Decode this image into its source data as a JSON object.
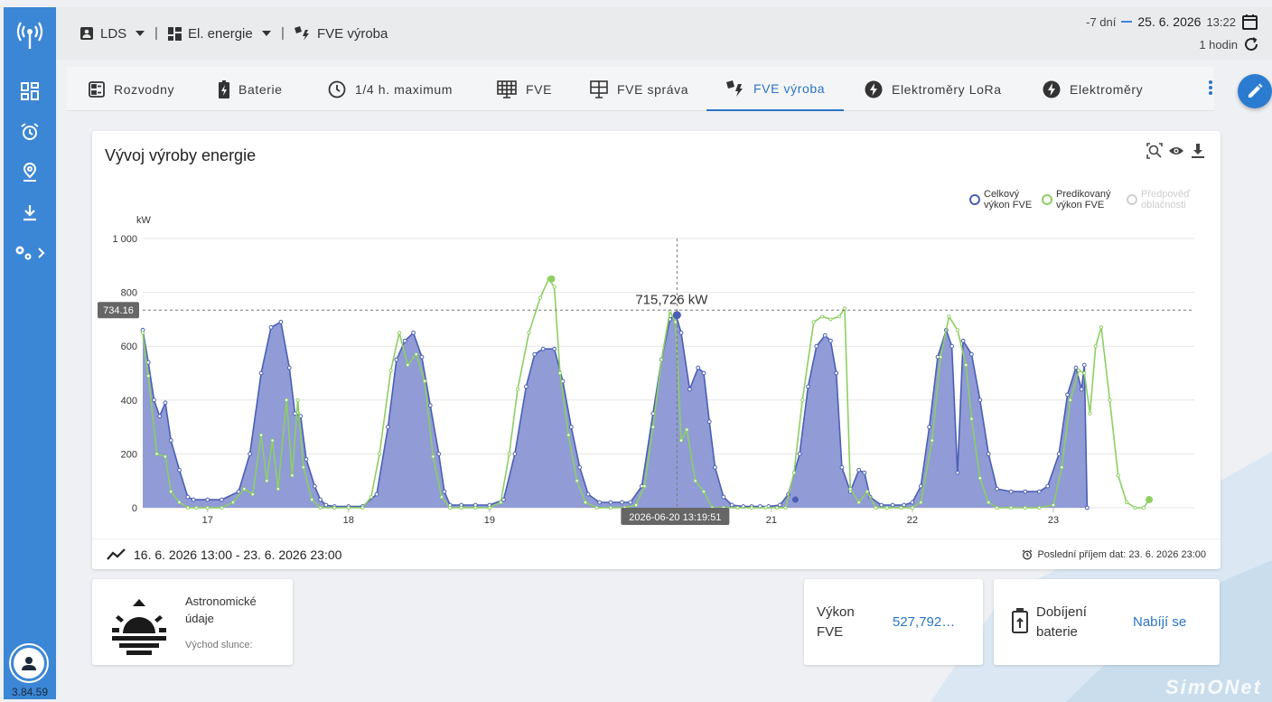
{
  "app": {
    "version": "3.84.59",
    "brand": "SimONet"
  },
  "header": {
    "crumbs": [
      {
        "label": "LDS",
        "icon": "badge-icon",
        "dropdown": true
      },
      {
        "label": "El. energie",
        "icon": "dashboard-icon",
        "dropdown": true
      },
      {
        "label": "FVE výroba",
        "icon": "solar-power-icon",
        "dropdown": false
      }
    ],
    "period": "-7 dní",
    "date": "25. 6. 2026",
    "time": "13:22",
    "interval": "1 hodin"
  },
  "tabs": [
    {
      "label": "Rozvodny",
      "icon": "switchboard-icon"
    },
    {
      "label": "Baterie",
      "icon": "battery-charging-icon"
    },
    {
      "label": "1/4 h. maximum",
      "icon": "clock-icon"
    },
    {
      "label": "FVE",
      "icon": "solar-panel-icon"
    },
    {
      "label": "FVE správa",
      "icon": "solar-panel-icon"
    },
    {
      "label": "FVE výroba",
      "icon": "solar-power-icon",
      "active": true
    },
    {
      "label": "Elektroměry LoRa",
      "icon": "bolt-icon"
    },
    {
      "label": "Elektroměry",
      "icon": "bolt-icon"
    }
  ],
  "chart_card": {
    "title": "Vývoj výroby energie",
    "range": "16. 6. 2026 13:00 - 23. 6. 2026 23:00",
    "last_rx": "Poslední příjem dat: 23. 6. 2026 23:00",
    "tooltip_value": "715,726 kW",
    "crosshair_y": "734.16",
    "crosshair_x": "2026-06-20 13:19:51"
  },
  "chart_data": {
    "type": "area",
    "ylabel": "kW",
    "ylim": [
      0,
      1000
    ],
    "yticks": [
      "0",
      "200",
      "400",
      "600",
      "800",
      "1 000"
    ],
    "xticks": [
      "17",
      "18",
      "19",
      "20",
      "21",
      "22",
      "23"
    ],
    "x_start_day": 16.54,
    "legend": [
      {
        "name": "Celkový výkon FVE",
        "color": "#4a5fb5"
      },
      {
        "name": "Predikovaný výkon FVE",
        "color": "#8ccf62"
      },
      {
        "name": "Předpověď oblačnosti",
        "color": "#d0d0d0",
        "disabled": true
      }
    ],
    "series": [
      {
        "name": "Celkový výkon FVE",
        "color": "#4a5fb5",
        "fill": "#8b96d4",
        "points": [
          [
            16.54,
            660
          ],
          [
            16.58,
            540
          ],
          [
            16.62,
            400
          ],
          [
            16.66,
            340
          ],
          [
            16.7,
            390
          ],
          [
            16.74,
            250
          ],
          [
            16.8,
            140
          ],
          [
            16.86,
            40
          ],
          [
            16.9,
            30
          ],
          [
            17.0,
            30
          ],
          [
            17.1,
            30
          ],
          [
            17.22,
            60
          ],
          [
            17.3,
            200
          ],
          [
            17.38,
            500
          ],
          [
            17.45,
            670
          ],
          [
            17.52,
            690
          ],
          [
            17.58,
            520
          ],
          [
            17.62,
            350
          ],
          [
            17.66,
            340
          ],
          [
            17.7,
            180
          ],
          [
            17.76,
            80
          ],
          [
            17.8,
            30
          ],
          [
            17.84,
            10
          ],
          [
            17.9,
            5
          ],
          [
            18.0,
            5
          ],
          [
            18.1,
            5
          ],
          [
            18.2,
            50
          ],
          [
            18.28,
            300
          ],
          [
            18.34,
            550
          ],
          [
            18.4,
            620
          ],
          [
            18.46,
            650
          ],
          [
            18.52,
            560
          ],
          [
            18.58,
            380
          ],
          [
            18.64,
            200
          ],
          [
            18.68,
            60
          ],
          [
            18.72,
            10
          ],
          [
            18.8,
            10
          ],
          [
            18.9,
            10
          ],
          [
            19.0,
            10
          ],
          [
            19.1,
            30
          ],
          [
            19.18,
            200
          ],
          [
            19.26,
            450
          ],
          [
            19.32,
            570
          ],
          [
            19.38,
            590
          ],
          [
            19.46,
            590
          ],
          [
            19.52,
            470
          ],
          [
            19.58,
            300
          ],
          [
            19.64,
            150
          ],
          [
            19.7,
            50
          ],
          [
            19.78,
            20
          ],
          [
            19.86,
            20
          ],
          [
            19.94,
            20
          ],
          [
            20.0,
            20
          ],
          [
            20.08,
            80
          ],
          [
            20.16,
            350
          ],
          [
            20.22,
            550
          ],
          [
            20.28,
            700
          ],
          [
            20.32,
            720
          ],
          [
            20.36,
            650
          ],
          [
            20.42,
            440
          ],
          [
            20.48,
            520
          ],
          [
            20.52,
            500
          ],
          [
            20.56,
            320
          ],
          [
            20.6,
            150
          ],
          [
            20.66,
            40
          ],
          [
            20.72,
            10
          ],
          [
            20.8,
            5
          ],
          [
            20.86,
            5
          ],
          [
            20.92,
            5
          ],
          [
            20.98,
            5
          ],
          [
            21.06,
            10
          ],
          [
            21.12,
            50
          ],
          [
            21.2,
            200
          ],
          [
            21.26,
            450
          ],
          [
            21.32,
            600
          ],
          [
            21.38,
            640
          ],
          [
            21.42,
            620
          ],
          [
            21.46,
            500
          ],
          [
            21.5,
            150
          ],
          [
            21.56,
            60
          ],
          [
            21.62,
            140
          ],
          [
            21.66,
            130
          ],
          [
            21.7,
            40
          ],
          [
            21.78,
            10
          ],
          [
            21.86,
            10
          ],
          [
            21.94,
            10
          ],
          [
            22.0,
            20
          ],
          [
            22.06,
            80
          ],
          [
            22.12,
            300
          ],
          [
            22.18,
            560
          ],
          [
            22.24,
            660
          ],
          [
            22.28,
            600
          ],
          [
            22.32,
            130
          ],
          [
            22.36,
            620
          ],
          [
            22.42,
            570
          ],
          [
            22.48,
            400
          ],
          [
            22.54,
            200
          ],
          [
            22.6,
            70
          ],
          [
            22.7,
            60
          ],
          [
            22.8,
            60
          ],
          [
            22.9,
            60
          ],
          [
            22.96,
            80
          ],
          [
            23.04,
            200
          ],
          [
            23.1,
            420
          ],
          [
            23.16,
            520
          ],
          [
            23.2,
            440
          ],
          [
            23.22,
            530
          ],
          [
            23.24,
            0
          ]
        ]
      },
      {
        "name": "Predikovaný výkon FVE",
        "color": "#8ccf62",
        "points": [
          [
            16.54,
            650
          ],
          [
            16.58,
            490
          ],
          [
            16.64,
            200
          ],
          [
            16.7,
            190
          ],
          [
            16.74,
            60
          ],
          [
            16.8,
            20
          ],
          [
            16.86,
            0
          ],
          [
            16.92,
            0
          ],
          [
            17.0,
            0
          ],
          [
            17.1,
            0
          ],
          [
            17.18,
            20
          ],
          [
            17.26,
            70
          ],
          [
            17.32,
            50
          ],
          [
            17.38,
            270
          ],
          [
            17.42,
            100
          ],
          [
            17.46,
            250
          ],
          [
            17.5,
            70
          ],
          [
            17.56,
            400
          ],
          [
            17.6,
            120
          ],
          [
            17.64,
            400
          ],
          [
            17.68,
            150
          ],
          [
            17.74,
            30
          ],
          [
            17.8,
            0
          ],
          [
            17.9,
            0
          ],
          [
            18.0,
            0
          ],
          [
            18.1,
            0
          ],
          [
            18.16,
            40
          ],
          [
            18.22,
            200
          ],
          [
            18.3,
            510
          ],
          [
            18.36,
            650
          ],
          [
            18.42,
            530
          ],
          [
            18.48,
            570
          ],
          [
            18.54,
            470
          ],
          [
            18.6,
            190
          ],
          [
            18.66,
            40
          ],
          [
            18.72,
            0
          ],
          [
            18.8,
            0
          ],
          [
            18.9,
            0
          ],
          [
            19.0,
            0
          ],
          [
            19.08,
            20
          ],
          [
            19.14,
            200
          ],
          [
            19.2,
            440
          ],
          [
            19.28,
            650
          ],
          [
            19.36,
            780
          ],
          [
            19.42,
            850
          ],
          [
            19.46,
            820
          ],
          [
            19.5,
            500
          ],
          [
            19.56,
            270
          ],
          [
            19.62,
            100
          ],
          [
            19.68,
            20
          ],
          [
            19.76,
            0
          ],
          [
            19.86,
            0
          ],
          [
            19.96,
            0
          ],
          [
            20.04,
            10
          ],
          [
            20.1,
            80
          ],
          [
            20.16,
            300
          ],
          [
            20.22,
            550
          ],
          [
            20.28,
            730
          ],
          [
            20.32,
            690
          ],
          [
            20.36,
            250
          ],
          [
            20.4,
            290
          ],
          [
            20.46,
            100
          ],
          [
            20.52,
            60
          ],
          [
            20.58,
            0
          ],
          [
            20.66,
            0
          ],
          [
            20.76,
            0
          ],
          [
            20.86,
            0
          ],
          [
            20.96,
            0
          ],
          [
            21.04,
            0
          ],
          [
            21.1,
            0
          ],
          [
            21.16,
            130
          ],
          [
            21.22,
            400
          ],
          [
            21.3,
            690
          ],
          [
            21.36,
            710
          ],
          [
            21.42,
            700
          ],
          [
            21.48,
            710
          ],
          [
            21.52,
            740
          ],
          [
            21.56,
            70
          ],
          [
            21.62,
            20
          ],
          [
            21.68,
            60
          ],
          [
            21.74,
            0
          ],
          [
            21.82,
            0
          ],
          [
            21.92,
            0
          ],
          [
            22.0,
            0
          ],
          [
            22.06,
            20
          ],
          [
            22.14,
            250
          ],
          [
            22.2,
            560
          ],
          [
            22.26,
            710
          ],
          [
            22.32,
            660
          ],
          [
            22.38,
            530
          ],
          [
            22.42,
            330
          ],
          [
            22.48,
            110
          ],
          [
            22.54,
            20
          ],
          [
            22.6,
            0
          ],
          [
            22.7,
            0
          ],
          [
            22.8,
            0
          ],
          [
            22.9,
            0
          ],
          [
            23.0,
            10
          ],
          [
            23.06,
            150
          ],
          [
            23.12,
            400
          ],
          [
            23.18,
            510
          ],
          [
            23.22,
            500
          ],
          [
            23.26,
            350
          ],
          [
            23.3,
            600
          ],
          [
            23.34,
            670
          ],
          [
            23.4,
            400
          ],
          [
            23.46,
            120
          ],
          [
            23.52,
            20
          ],
          [
            23.58,
            0
          ],
          [
            23.64,
            0
          ],
          [
            23.68,
            30
          ]
        ]
      }
    ],
    "annotation": {
      "x": 20.33,
      "y": 715.726,
      "label": "715,726 kW"
    }
  },
  "astro": {
    "title": "Astronomické údaje",
    "sub": "Východ slunce:"
  },
  "power": {
    "label": "Výkon FVE",
    "value": "527,792…"
  },
  "battery": {
    "label": "Dobíjení baterie",
    "value": "Nabíjí se"
  }
}
